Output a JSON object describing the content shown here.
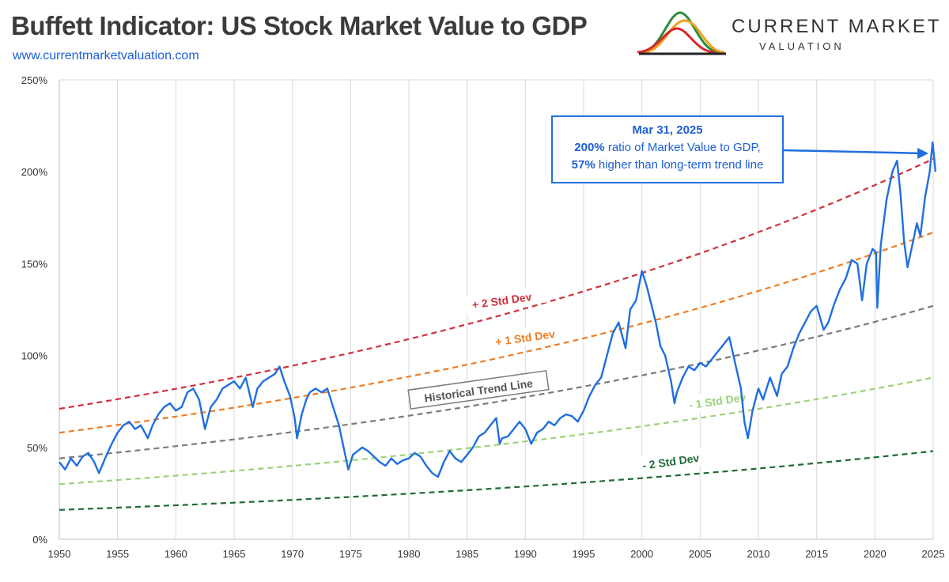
{
  "header": {
    "title": "Buffett Indicator: US Stock Market Value to GDP",
    "url": "www.currentmarketvaluation.com"
  },
  "logo": {
    "name": "CURRENT MARKET",
    "sub": "VALUATION",
    "colors": [
      "#2e8b3a",
      "#f0a21c",
      "#d9262c"
    ]
  },
  "callout": {
    "date": "Mar 31, 2025",
    "line1_value": "200%",
    "line1_text": " ratio of Market Value to GDP,",
    "line2_value": "57%",
    "line2_text": " higher than long-term trend line"
  },
  "chart_data": {
    "type": "line",
    "title": "Buffett Indicator: US Stock Market Value to GDP",
    "xlabel": "",
    "ylabel": "",
    "xlim": [
      1950,
      2025.5
    ],
    "ylim": [
      0,
      250
    ],
    "grid": "vertical",
    "x_ticks": [
      1950,
      1955,
      1960,
      1965,
      1970,
      1975,
      1980,
      1985,
      1990,
      1995,
      2000,
      2005,
      2010,
      2015,
      2020,
      2025
    ],
    "y_ticks": [
      0,
      50,
      100,
      150,
      200,
      250
    ],
    "y_tick_labels": [
      "0%",
      "50%",
      "100%",
      "150%",
      "200%",
      "250%"
    ],
    "bands": [
      {
        "name": "+ 2 Std Dev",
        "color": "#d0323c",
        "y_start": 71,
        "y_end": 207,
        "label_x": 1958
      },
      {
        "name": "+ 1 Std Dev",
        "color": "#ed7d22",
        "y_start": 58,
        "y_end": 167,
        "label_x": 1960
      },
      {
        "name": "Historical Trend Line",
        "color": "#7a7a7a",
        "y_start": 44,
        "y_end": 127,
        "label_x": 1978
      },
      {
        "name": "- 1 Std Dev",
        "color": "#9ad27a",
        "y_start": 30,
        "y_end": 88,
        "label_x": 2014
      },
      {
        "name": "- 2 Std Dev",
        "color": "#1e6b36",
        "y_start": 16,
        "y_end": 48,
        "label_x": 2009
      }
    ],
    "series": [
      {
        "color": "#1f6fe0",
        "points": [
          [
            1950,
            42
          ],
          [
            1950.5,
            38
          ],
          [
            1951,
            44
          ],
          [
            1951.5,
            40
          ],
          [
            1952,
            45
          ],
          [
            1952.5,
            47
          ],
          [
            1953,
            42
          ],
          [
            1953.4,
            36
          ],
          [
            1954,
            45
          ],
          [
            1954.5,
            52
          ],
          [
            1955,
            58
          ],
          [
            1955.5,
            62
          ],
          [
            1956,
            64
          ],
          [
            1956.5,
            60
          ],
          [
            1957,
            62
          ],
          [
            1957.6,
            55
          ],
          [
            1958,
            62
          ],
          [
            1958.5,
            68
          ],
          [
            1959,
            72
          ],
          [
            1959.5,
            74
          ],
          [
            1960,
            70
          ],
          [
            1960.5,
            72
          ],
          [
            1961,
            80
          ],
          [
            1961.5,
            82
          ],
          [
            1962,
            76
          ],
          [
            1962.5,
            60
          ],
          [
            1963,
            72
          ],
          [
            1963.5,
            76
          ],
          [
            1964,
            82
          ],
          [
            1964.5,
            84
          ],
          [
            1965,
            86
          ],
          [
            1965.5,
            82
          ],
          [
            1966,
            88
          ],
          [
            1966.6,
            72
          ],
          [
            1967,
            82
          ],
          [
            1967.5,
            86
          ],
          [
            1968,
            88
          ],
          [
            1968.5,
            90
          ],
          [
            1968.9,
            94
          ],
          [
            1969.3,
            86
          ],
          [
            1969.8,
            78
          ],
          [
            1970.2,
            66
          ],
          [
            1970.4,
            55
          ],
          [
            1970.8,
            68
          ],
          [
            1971.2,
            76
          ],
          [
            1971.5,
            80
          ],
          [
            1972,
            82
          ],
          [
            1972.5,
            80
          ],
          [
            1973,
            82
          ],
          [
            1973.5,
            72
          ],
          [
            1974,
            62
          ],
          [
            1974.4,
            50
          ],
          [
            1974.8,
            38
          ],
          [
            1975.2,
            46
          ],
          [
            1975.6,
            48
          ],
          [
            1976,
            50
          ],
          [
            1976.5,
            48
          ],
          [
            1977,
            45
          ],
          [
            1977.5,
            42
          ],
          [
            1978,
            40
          ],
          [
            1978.5,
            44
          ],
          [
            1979,
            41
          ],
          [
            1979.5,
            43
          ],
          [
            1980,
            44
          ],
          [
            1980.5,
            47
          ],
          [
            1981,
            45
          ],
          [
            1981.5,
            40
          ],
          [
            1982,
            36
          ],
          [
            1982.5,
            34
          ],
          [
            1983,
            42
          ],
          [
            1983.5,
            48
          ],
          [
            1984,
            44
          ],
          [
            1984.5,
            42
          ],
          [
            1985,
            46
          ],
          [
            1985.5,
            50
          ],
          [
            1986,
            56
          ],
          [
            1986.5,
            58
          ],
          [
            1987,
            62
          ],
          [
            1987.5,
            66
          ],
          [
            1987.8,
            52
          ],
          [
            1988,
            55
          ],
          [
            1988.5,
            56
          ],
          [
            1989,
            60
          ],
          [
            1989.5,
            64
          ],
          [
            1990,
            60
          ],
          [
            1990.5,
            52
          ],
          [
            1991,
            58
          ],
          [
            1991.5,
            60
          ],
          [
            1992,
            64
          ],
          [
            1992.5,
            62
          ],
          [
            1993,
            66
          ],
          [
            1993.5,
            68
          ],
          [
            1994,
            67
          ],
          [
            1994.5,
            64
          ],
          [
            1995,
            70
          ],
          [
            1995.5,
            78
          ],
          [
            1996,
            84
          ],
          [
            1996.5,
            88
          ],
          [
            1997,
            100
          ],
          [
            1997.5,
            112
          ],
          [
            1998,
            118
          ],
          [
            1998.6,
            104
          ],
          [
            1999,
            125
          ],
          [
            1999.5,
            130
          ],
          [
            2000,
            146
          ],
          [
            2000.4,
            138
          ],
          [
            2000.8,
            128
          ],
          [
            2001.2,
            118
          ],
          [
            2001.6,
            105
          ],
          [
            2002,
            100
          ],
          [
            2002.5,
            86
          ],
          [
            2002.8,
            74
          ],
          [
            2003,
            80
          ],
          [
            2003.5,
            88
          ],
          [
            2004,
            94
          ],
          [
            2004.5,
            92
          ],
          [
            2005,
            96
          ],
          [
            2005.5,
            94
          ],
          [
            2006,
            98
          ],
          [
            2006.5,
            102
          ],
          [
            2007,
            106
          ],
          [
            2007.5,
            110
          ],
          [
            2008,
            96
          ],
          [
            2008.5,
            82
          ],
          [
            2008.8,
            64
          ],
          [
            2009.1,
            55
          ],
          [
            2009.5,
            70
          ],
          [
            2010,
            82
          ],
          [
            2010.4,
            76
          ],
          [
            2011,
            88
          ],
          [
            2011.6,
            78
          ],
          [
            2012,
            90
          ],
          [
            2012.5,
            94
          ],
          [
            2013,
            104
          ],
          [
            2013.5,
            112
          ],
          [
            2014,
            118
          ],
          [
            2014.5,
            124
          ],
          [
            2015,
            127
          ],
          [
            2015.6,
            114
          ],
          [
            2016,
            118
          ],
          [
            2016.5,
            128
          ],
          [
            2017,
            136
          ],
          [
            2017.5,
            142
          ],
          [
            2018,
            152
          ],
          [
            2018.5,
            150
          ],
          [
            2018.9,
            130
          ],
          [
            2019.3,
            150
          ],
          [
            2019.8,
            158
          ],
          [
            2020.1,
            156
          ],
          [
            2020.2,
            126
          ],
          [
            2020.5,
            160
          ],
          [
            2021,
            185
          ],
          [
            2021.5,
            200
          ],
          [
            2021.9,
            206
          ],
          [
            2022.2,
            188
          ],
          [
            2022.5,
            162
          ],
          [
            2022.8,
            148
          ],
          [
            2023.2,
            160
          ],
          [
            2023.6,
            172
          ],
          [
            2023.9,
            165
          ],
          [
            2024.3,
            186
          ],
          [
            2024.7,
            200
          ],
          [
            2024.95,
            216
          ],
          [
            2025.2,
            200
          ]
        ]
      }
    ]
  }
}
